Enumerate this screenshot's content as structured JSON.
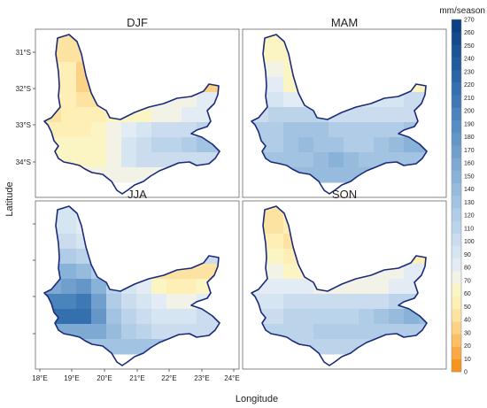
{
  "chart_data": {
    "type": "heatmap",
    "xlabel": "Longitude",
    "ylabel": "Latitude",
    "colorbar": {
      "unit": "mm/season",
      "min": 0,
      "max": 270,
      "step": 10,
      "ticks": [
        "0",
        "10",
        "20",
        "30",
        "40",
        "50",
        "60",
        "70",
        "80",
        "90",
        "100",
        "110",
        "120",
        "130",
        "140",
        "150",
        "160",
        "170",
        "180",
        "190",
        "200",
        "210",
        "220",
        "230",
        "240",
        "250",
        "260",
        "270"
      ],
      "colors": [
        "#f7941e",
        "#f9aa45",
        "#fbbf66",
        "#fcd386",
        "#fde3a2",
        "#fdefb6",
        "#fbf5c3",
        "#f2f3e6",
        "#e3ecf5",
        "#d6e5f2",
        "#cadcee",
        "#bcd4ea",
        "#b0cce6",
        "#a2c3e1",
        "#96bbdd",
        "#89b2d8",
        "#7da9d3",
        "#709fce",
        "#6496c8",
        "#578dc2",
        "#4b83bc",
        "#3f79b5",
        "#3470ad",
        "#2a66a5",
        "#215d9d",
        "#195494",
        "#124b8b",
        "#0c4283"
      ]
    },
    "latitude_ticks": [
      "31°S",
      "32°S",
      "33°S",
      "34°S"
    ],
    "longitude_ticks": [
      "18°E",
      "19°E",
      "20°E",
      "21°E",
      "22°E",
      "23°E",
      "24°E"
    ],
    "grid": {
      "lon_start": 18.0,
      "lon_step": 0.5,
      "lat_start": -30.5,
      "lat_step": -0.5,
      "note_nan": "null cells are outside the province outline"
    },
    "panels": [
      {
        "title": "DJF",
        "values": [
          [
            null,
            40,
            40,
            null,
            null,
            null,
            null,
            null,
            null,
            null,
            null,
            null
          ],
          [
            null,
            40,
            40,
            40,
            null,
            null,
            null,
            null,
            null,
            null,
            null,
            null
          ],
          [
            null,
            50,
            35,
            30,
            null,
            null,
            null,
            null,
            null,
            null,
            null,
            null
          ],
          [
            null,
            50,
            30,
            30,
            null,
            null,
            null,
            null,
            null,
            null,
            null,
            null
          ],
          [
            null,
            50,
            40,
            40,
            50,
            null,
            null,
            null,
            null,
            70,
            80,
            null
          ],
          [
            40,
            50,
            50,
            50,
            60,
            60,
            60,
            70,
            70,
            80,
            80,
            80
          ],
          [
            null,
            50,
            50,
            60,
            70,
            80,
            90,
            100,
            100,
            100,
            110,
            90
          ],
          [
            null,
            60,
            60,
            60,
            70,
            90,
            100,
            110,
            110,
            120,
            130,
            130
          ],
          [
            null,
            null,
            null,
            60,
            70,
            90,
            100,
            100,
            null,
            null,
            null,
            null
          ],
          [
            null,
            null,
            null,
            null,
            null,
            70,
            null,
            null,
            null,
            null,
            null,
            null
          ]
        ]
      },
      {
        "title": "MAM",
        "values": [
          [
            null,
            60,
            60,
            null,
            null,
            null,
            null,
            null,
            null,
            null,
            null,
            null
          ],
          [
            null,
            60,
            60,
            70,
            null,
            null,
            null,
            null,
            null,
            null,
            null,
            null
          ],
          [
            null,
            70,
            60,
            60,
            null,
            null,
            null,
            null,
            null,
            null,
            null,
            null
          ],
          [
            null,
            80,
            60,
            60,
            null,
            null,
            null,
            null,
            null,
            null,
            null,
            null
          ],
          [
            null,
            90,
            80,
            80,
            80,
            null,
            null,
            null,
            null,
            90,
            100,
            null
          ],
          [
            100,
            110,
            110,
            110,
            110,
            100,
            100,
            100,
            100,
            100,
            100,
            100
          ],
          [
            null,
            120,
            130,
            130,
            130,
            120,
            120,
            120,
            120,
            120,
            130,
            120
          ],
          [
            null,
            120,
            130,
            140,
            130,
            130,
            120,
            120,
            130,
            140,
            150,
            150
          ],
          [
            null,
            null,
            null,
            130,
            140,
            150,
            140,
            130,
            null,
            null,
            null,
            null
          ],
          [
            null,
            null,
            null,
            null,
            null,
            140,
            null,
            null,
            null,
            null,
            null,
            null
          ]
        ]
      },
      {
        "title": "JJA",
        "values": [
          [
            null,
            90,
            80,
            null,
            null,
            null,
            null,
            null,
            null,
            null,
            null,
            null
          ],
          [
            null,
            90,
            80,
            80,
            null,
            null,
            null,
            null,
            null,
            null,
            null,
            null
          ],
          [
            null,
            100,
            90,
            80,
            null,
            null,
            null,
            null,
            null,
            null,
            null,
            null
          ],
          [
            null,
            120,
            110,
            100,
            null,
            null,
            null,
            null,
            null,
            null,
            null,
            null
          ],
          [
            null,
            150,
            140,
            120,
            100,
            null,
            null,
            null,
            null,
            40,
            40,
            null
          ],
          [
            160,
            170,
            180,
            150,
            110,
            90,
            80,
            60,
            50,
            50,
            60,
            70
          ],
          [
            null,
            200,
            210,
            170,
            120,
            100,
            90,
            80,
            70,
            70,
            80,
            80
          ],
          [
            null,
            220,
            220,
            180,
            130,
            110,
            100,
            90,
            90,
            90,
            100,
            100
          ],
          [
            null,
            null,
            null,
            160,
            140,
            120,
            110,
            100,
            null,
            null,
            null,
            null
          ],
          [
            null,
            null,
            null,
            null,
            null,
            130,
            null,
            null,
            null,
            null,
            null,
            null
          ]
        ]
      },
      {
        "title": "SON",
        "values": [
          [
            null,
            40,
            50,
            null,
            null,
            null,
            null,
            null,
            null,
            null,
            null,
            null
          ],
          [
            null,
            40,
            50,
            50,
            null,
            null,
            null,
            null,
            null,
            null,
            null,
            null
          ],
          [
            null,
            50,
            40,
            50,
            null,
            null,
            null,
            null,
            null,
            null,
            null,
            null
          ],
          [
            null,
            60,
            50,
            50,
            null,
            null,
            null,
            null,
            null,
            null,
            null,
            null
          ],
          [
            null,
            70,
            60,
            60,
            70,
            null,
            null,
            null,
            null,
            70,
            80,
            null
          ],
          [
            80,
            80,
            80,
            80,
            70,
            70,
            70,
            70,
            70,
            80,
            80,
            80
          ],
          [
            null,
            90,
            100,
            100,
            100,
            100,
            100,
            100,
            100,
            110,
            110,
            110
          ],
          [
            null,
            100,
            110,
            110,
            110,
            110,
            110,
            120,
            130,
            140,
            150,
            140
          ],
          [
            null,
            null,
            null,
            110,
            120,
            120,
            120,
            120,
            null,
            null,
            null,
            null
          ],
          [
            null,
            null,
            null,
            null,
            null,
            110,
            null,
            null,
            null,
            null,
            null,
            null
          ]
        ]
      }
    ]
  }
}
